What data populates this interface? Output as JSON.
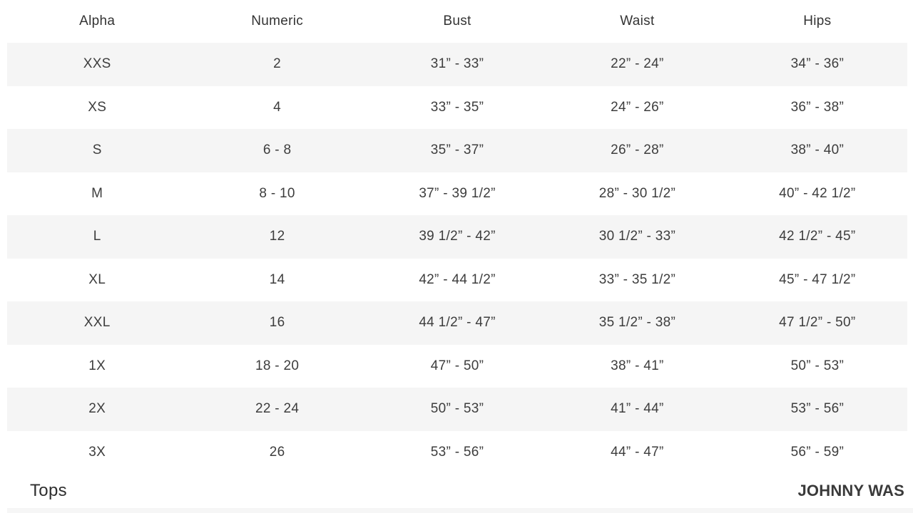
{
  "size_chart": {
    "columns": [
      "Alpha",
      "Numeric",
      "Bust",
      "Waist",
      "Hips"
    ],
    "rows": [
      [
        "XXS",
        "2",
        "31” - 33”",
        "22” - 24”",
        "34” - 36”"
      ],
      [
        "XS",
        "4",
        "33” - 35”",
        "24” - 26”",
        "36” - 38”"
      ],
      [
        "S",
        "6 - 8",
        "35” - 37”",
        "26” - 28”",
        "38” - 40”"
      ],
      [
        "M",
        "8 - 10",
        "37” - 39 1/2”",
        "28” - 30 1/2”",
        "40” - 42 1/2”"
      ],
      [
        "L",
        "12",
        "39 1/2” - 42”",
        "30 1/2” - 33”",
        "42 1/2” - 45”"
      ],
      [
        "XL",
        "14",
        "42” - 44 1/2”",
        "33” - 35 1/2”",
        "45” - 47 1/2”"
      ],
      [
        "XXL",
        "16",
        "44 1/2” - 47”",
        "35 1/2” - 38”",
        "47 1/2” - 50”"
      ],
      [
        "1X",
        "18 - 20",
        "47” - 50”",
        "38” - 41”",
        "50” - 53”"
      ],
      [
        "2X",
        "22 - 24",
        "50” - 53”",
        "41” - 44”",
        "53” - 56”"
      ],
      [
        "3X",
        "26",
        "53” - 56”",
        "44” - 47”",
        "56” - 59”"
      ]
    ]
  },
  "footer": {
    "category_label": "Tops",
    "brand": "JOHNNY WAS"
  },
  "colors": {
    "row_alt_bg": "#f5f5f5",
    "cell_text": "#3d3d3d"
  }
}
